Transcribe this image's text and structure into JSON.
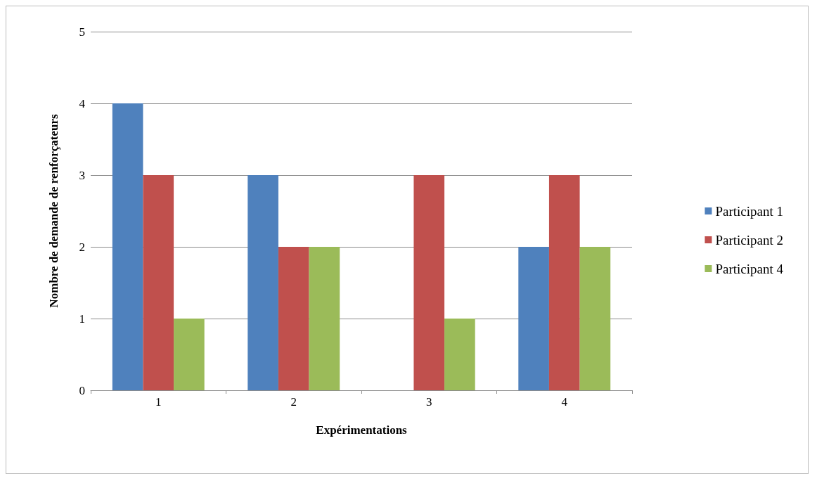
{
  "chart_data": {
    "type": "bar",
    "xlabel": "Expérimentations",
    "ylabel": "Nombre de demande de renforçateurs",
    "categories": [
      "1",
      "2",
      "3",
      "4"
    ],
    "series": [
      {
        "name": "Participant 1",
        "color": "#4f81bd",
        "values": [
          4,
          3,
          0,
          2
        ]
      },
      {
        "name": "Participant 2",
        "color": "#c0504d",
        "values": [
          3,
          2,
          3,
          3
        ]
      },
      {
        "name": "Participant 4",
        "color": "#9bbb59",
        "values": [
          1,
          2,
          1,
          2
        ]
      }
    ],
    "ylim": [
      0,
      5
    ],
    "yticks": [
      0,
      1,
      2,
      3,
      4,
      5
    ],
    "grid": "y",
    "legend": "right"
  }
}
